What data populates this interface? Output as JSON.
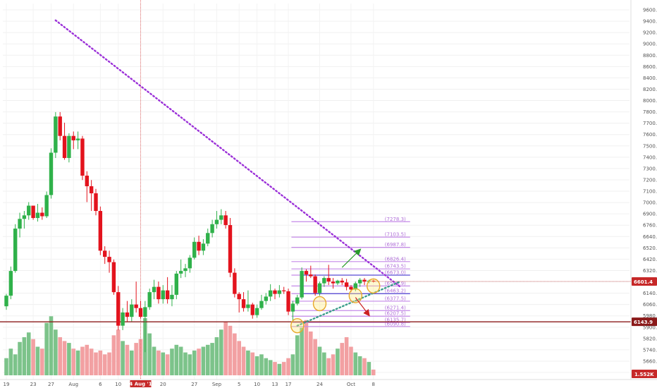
{
  "chart_data": {
    "type": "candlestick",
    "title": "",
    "xlabel": "",
    "ylabel": "",
    "ylim": [
      5490,
      9750
    ],
    "y_ticks": [
      "9600.0",
      "9400.0",
      "9200.0",
      "9000.0",
      "8800.0",
      "8600.0",
      "8400.0",
      "8200.0",
      "8000.0",
      "7800.0",
      "7700.0",
      "7600.0",
      "7500.0",
      "7400.0",
      "7300.0",
      "7200.0",
      "7100.0",
      "7000.0",
      "6900.0",
      "6760.0",
      "6640.0",
      "6520.0",
      "6420.0",
      "6320.0",
      "6220.0",
      "6140.0",
      "6060.0",
      "5980.0",
      "5900.0",
      "5820.0",
      "5740.0",
      "5660.0",
      "5580.0"
    ],
    "x_ticks": [
      {
        "label": "19",
        "index": 0
      },
      {
        "label": "23",
        "index": 6
      },
      {
        "label": "27",
        "index": 10
      },
      {
        "label": "Aug",
        "index": 15
      },
      {
        "label": "6",
        "index": 21
      },
      {
        "label": "10",
        "index": 25
      },
      {
        "label": "14 Aug '18",
        "index": 30,
        "highlight": true
      },
      {
        "label": "20",
        "index": 35
      },
      {
        "label": "27",
        "index": 42
      },
      {
        "label": "Sep",
        "index": 47
      },
      {
        "label": "5",
        "index": 52
      },
      {
        "label": "10",
        "index": 56
      },
      {
        "label": "13",
        "index": 60
      },
      {
        "label": "17",
        "index": 63
      },
      {
        "label": "24",
        "index": 70
      },
      {
        "label": "Oct",
        "index": 77
      },
      {
        "label": "8",
        "index": 82
      }
    ],
    "candles": [
      [
        6320,
        6460,
        6280,
        6440
      ],
      [
        6440,
        6770,
        6400,
        6720
      ],
      [
        6720,
        7250,
        6700,
        7200
      ],
      [
        7200,
        7380,
        7100,
        7310
      ],
      [
        7310,
        7400,
        7200,
        7350
      ],
      [
        7350,
        7500,
        7300,
        7460
      ],
      [
        7460,
        7420,
        7300,
        7320
      ],
      [
        7320,
        7480,
        7280,
        7380
      ],
      [
        7380,
        7440,
        7300,
        7340
      ],
      [
        7340,
        7620,
        7320,
        7580
      ],
      [
        7580,
        8110,
        7540,
        8060
      ],
      [
        8060,
        8520,
        8000,
        8470
      ],
      [
        8470,
        8520,
        8200,
        8250
      ],
      [
        8250,
        8400,
        7980,
        8000
      ],
      [
        8000,
        8280,
        7950,
        8250
      ],
      [
        8250,
        8300,
        8100,
        8200
      ],
      [
        8200,
        8300,
        8100,
        8220
      ],
      [
        8220,
        8250,
        7750,
        7800
      ],
      [
        7800,
        7850,
        7500,
        7680
      ],
      [
        7680,
        7750,
        7400,
        7600
      ],
      [
        7600,
        7650,
        7350,
        7400
      ],
      [
        7400,
        7450,
        6900,
        6950
      ],
      [
        6950,
        7000,
        6800,
        6880
      ],
      [
        6880,
        6950,
        6700,
        6820
      ],
      [
        6820,
        6850,
        6450,
        6480
      ],
      [
        6480,
        6550,
        6050,
        6100
      ],
      [
        6100,
        6300,
        6050,
        6250
      ],
      [
        6250,
        6380,
        6150,
        6200
      ],
      [
        6200,
        6400,
        6150,
        6340
      ],
      [
        6340,
        6600,
        6250,
        6300
      ],
      [
        6300,
        6380,
        6180,
        6200
      ],
      [
        6200,
        6380,
        5800,
        6310
      ],
      [
        6310,
        6520,
        6280,
        6480
      ],
      [
        6480,
        6620,
        6400,
        6540
      ],
      [
        6540,
        6600,
        6350,
        6400
      ],
      [
        6400,
        6560,
        6350,
        6500
      ],
      [
        6500,
        6650,
        6350,
        6400
      ],
      [
        6400,
        6560,
        6320,
        6450
      ],
      [
        6450,
        6720,
        6400,
        6690
      ],
      [
        6690,
        6850,
        6640,
        6720
      ],
      [
        6720,
        6800,
        6650,
        6750
      ],
      [
        6750,
        6900,
        6700,
        6870
      ],
      [
        6870,
        7100,
        6850,
        7050
      ],
      [
        7050,
        7120,
        6900,
        6950
      ],
      [
        6950,
        7080,
        6900,
        7030
      ],
      [
        7030,
        7200,
        7000,
        7150
      ],
      [
        7150,
        7300,
        7100,
        7250
      ],
      [
        7250,
        7400,
        7200,
        7300
      ],
      [
        7300,
        7420,
        7250,
        7350
      ],
      [
        7350,
        7400,
        7200,
        7240
      ],
      [
        7240,
        7320,
        6650,
        6700
      ],
      [
        6700,
        6750,
        6420,
        6460
      ],
      [
        6460,
        6480,
        6250,
        6400
      ],
      [
        6400,
        6480,
        6260,
        6300
      ],
      [
        6300,
        6500,
        6260,
        6340
      ],
      [
        6340,
        6360,
        6180,
        6220
      ],
      [
        6220,
        6340,
        6190,
        6300
      ],
      [
        6300,
        6450,
        6280,
        6380
      ],
      [
        6380,
        6470,
        6340,
        6430
      ],
      [
        6430,
        6570,
        6380,
        6500
      ],
      [
        6500,
        6520,
        6400,
        6460
      ],
      [
        6460,
        6560,
        6420,
        6500
      ],
      [
        6500,
        6540,
        6460,
        6490
      ],
      [
        6490,
        6520,
        6220,
        6260
      ],
      [
        6260,
        6380,
        6150,
        6350
      ],
      [
        6350,
        6450,
        6330,
        6420
      ],
      [
        6420,
        6760,
        6400,
        6720
      ],
      [
        6720,
        6740,
        6600,
        6680
      ],
      [
        6680,
        6780,
        6640,
        6660
      ],
      [
        6660,
        6680,
        6440,
        6470
      ],
      [
        6470,
        6600,
        6440,
        6580
      ],
      [
        6580,
        6660,
        6540,
        6640
      ],
      [
        6640,
        6790,
        6560,
        6600
      ],
      [
        6600,
        6640,
        6520,
        6580
      ],
      [
        6580,
        6620,
        6560,
        6610
      ],
      [
        6610,
        6640,
        6560,
        6590
      ],
      [
        6590,
        6630,
        6500,
        6540
      ],
      [
        6540,
        6560,
        6480,
        6510
      ],
      [
        6510,
        6600,
        6490,
        6580
      ],
      [
        6580,
        6640,
        6540,
        6620
      ],
      [
        6620,
        6640,
        6560,
        6600
      ],
      [
        6600,
        6620,
        6580,
        6610
      ],
      [
        6610,
        6620,
        6590,
        6601
      ]
    ],
    "volume_scale_max": 100,
    "volume": [
      18,
      28,
      22,
      35,
      40,
      45,
      38,
      30,
      28,
      55,
      62,
      48,
      40,
      36,
      34,
      28,
      26,
      30,
      32,
      28,
      24,
      26,
      22,
      24,
      42,
      48,
      36,
      32,
      26,
      34,
      38,
      60,
      44,
      30,
      26,
      24,
      22,
      28,
      32,
      30,
      24,
      22,
      26,
      28,
      30,
      32,
      34,
      40,
      48,
      56,
      52,
      44,
      36,
      30,
      26,
      24,
      20,
      22,
      18,
      16,
      14,
      12,
      14,
      18,
      22,
      42,
      50,
      58,
      46,
      38,
      30,
      24,
      18,
      22,
      28,
      34,
      40,
      30,
      24,
      20,
      18,
      14,
      6
    ],
    "trendlines": [
      {
        "style": "dotted",
        "color": "#9b30d8",
        "from": [
          11,
          9560
        ],
        "to": [
          88,
          6540
        ]
      },
      {
        "style": "dotted",
        "color": "#3a9e8a",
        "from": [
          65,
          6100
        ],
        "to": [
          88,
          6600
        ]
      }
    ],
    "fib_levels": [
      {
        "label": "(7278.3)",
        "value": 7278.3
      },
      {
        "label": "(7103.5)",
        "value": 7103.5
      },
      {
        "label": "(6987.8)",
        "value": 6987.8
      },
      {
        "label": "(6826.4)",
        "value": 6826.4
      },
      {
        "label": "(6743.5)",
        "value": 6743.5
      },
      {
        "label": "(6673.0)",
        "value": 6673.0
      },
      {
        "label": "(6549.9)",
        "value": 6549.9
      },
      {
        "label": "(6463.2)",
        "value": 6463.2
      },
      {
        "label": "(6377.5)",
        "value": 6377.5
      },
      {
        "label": "(6271.4)",
        "value": 6271.4
      },
      {
        "label": "(6207.5)",
        "value": 6207.5
      },
      {
        "label": "(6135.7)",
        "value": 6135.7
      },
      {
        "label": "(6090.8)",
        "value": 6090.8
      }
    ],
    "support_line": {
      "value": 6143.9,
      "label": "6143.9"
    },
    "current_price": {
      "value": 6601.4,
      "label": "6601.4"
    },
    "volume_readout": {
      "label": "1.552K"
    },
    "arrows": [
      {
        "color": "#2a9a2a",
        "from": [
          75,
          6760
        ],
        "to": [
          79,
          6960
        ]
      },
      {
        "color": "#cc2222",
        "from": [
          78,
          6420
        ],
        "to": [
          81,
          6220
        ]
      }
    ],
    "circles": [
      {
        "index": 65,
        "value": 6100
      },
      {
        "index": 70,
        "value": 6350
      },
      {
        "index": 78,
        "value": 6440
      },
      {
        "index": 82,
        "value": 6550
      }
    ],
    "colors": {
      "up": "#2fb14a",
      "down": "#e3131d",
      "volume_up": "#7cc38a",
      "volume_down": "#f2a0a2",
      "fib": "#c58ae8",
      "support": "#8b1a1a",
      "price_flag": "#c62828",
      "circle": "#e8a92a",
      "vline": "#e05050"
    }
  }
}
